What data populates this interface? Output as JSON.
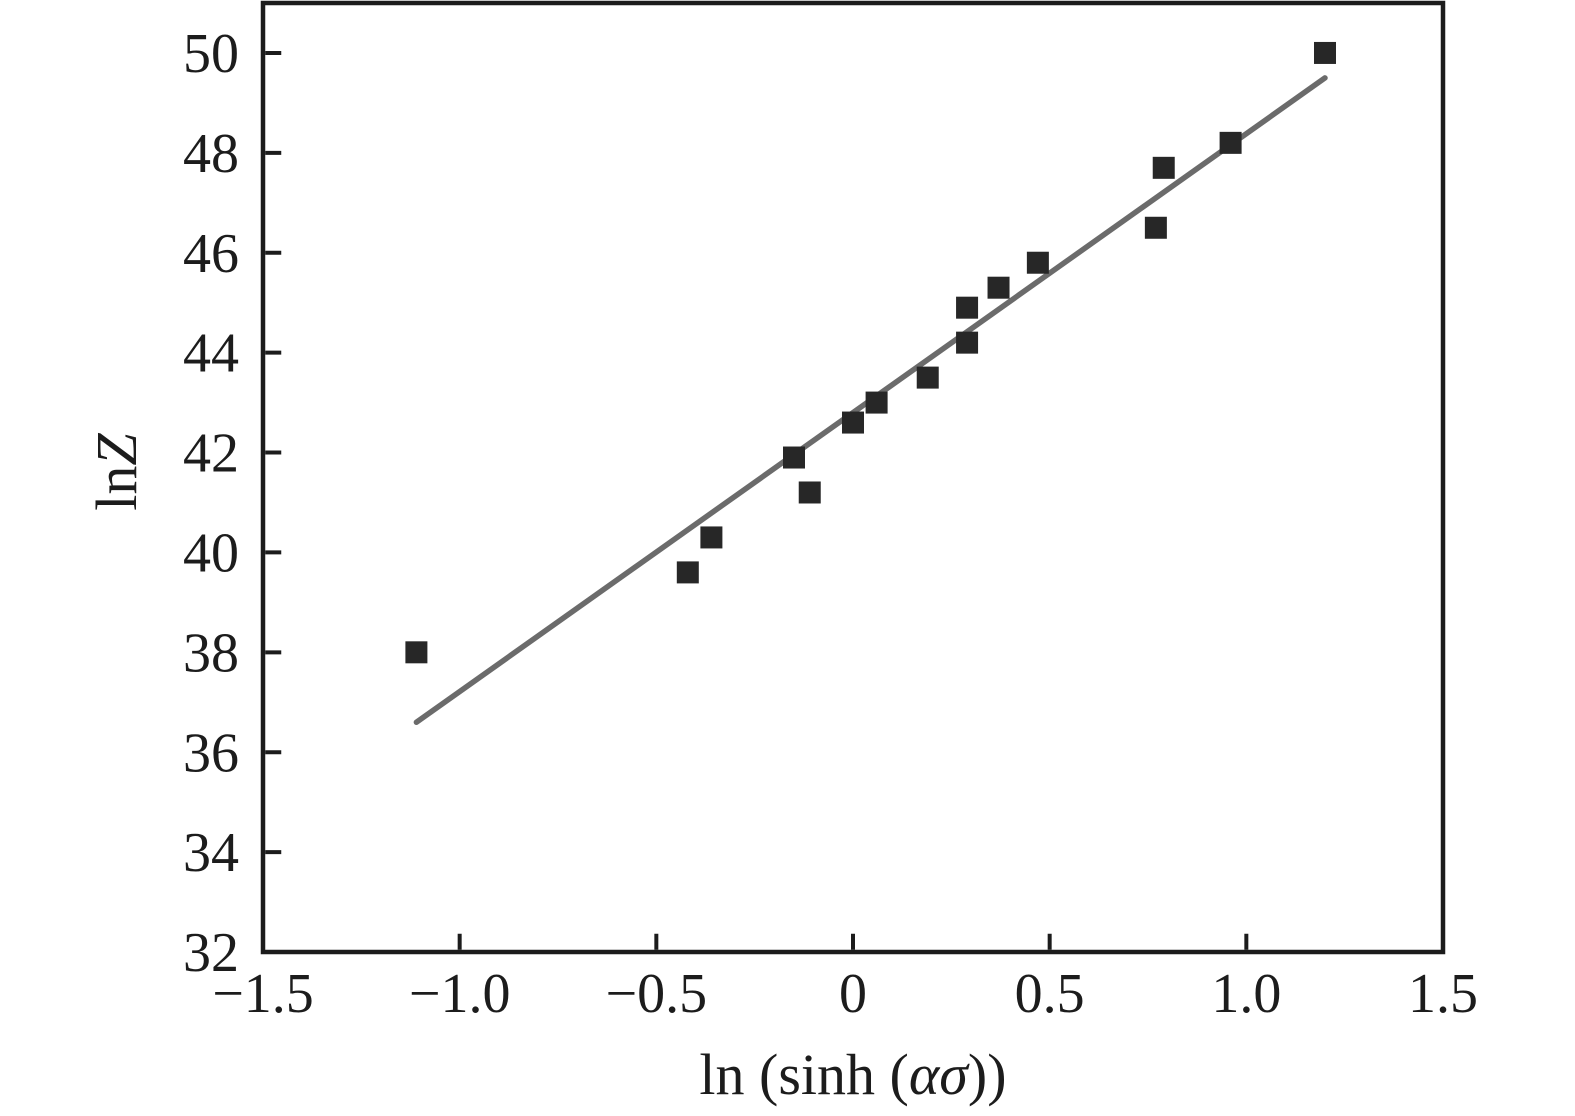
{
  "figure": {
    "background": "#ffffff",
    "plot_background": "#ffffff"
  },
  "chart_data": {
    "type": "scatter",
    "title": "",
    "xlabel": {
      "prefix": "ln (sinh (",
      "italic": "ασ",
      "suffix": "))",
      "plain": "ln (sinh (ασ))"
    },
    "ylabel": {
      "prefix": "ln",
      "italic": "Z",
      "suffix": "",
      "plain": "lnZ"
    },
    "xlim": [
      -1.5,
      1.5
    ],
    "ylim": [
      32,
      51
    ],
    "grid": false,
    "legend_position": "none",
    "axis_color": "#1c1c1c",
    "tick_direction": "in",
    "xticks": [
      {
        "value": -1.5,
        "label": "−1.5"
      },
      {
        "value": -1.0,
        "label": "−1.0"
      },
      {
        "value": -0.5,
        "label": "−0.5"
      },
      {
        "value": 0,
        "label": "0"
      },
      {
        "value": 0.5,
        "label": "0.5"
      },
      {
        "value": 1.0,
        "label": "1.0"
      },
      {
        "value": 1.5,
        "label": "1.5"
      }
    ],
    "yticks": [
      {
        "value": 32,
        "label": "32"
      },
      {
        "value": 34,
        "label": "34"
      },
      {
        "value": 36,
        "label": "36"
      },
      {
        "value": 38,
        "label": "38"
      },
      {
        "value": 40,
        "label": "40"
      },
      {
        "value": 42,
        "label": "42"
      },
      {
        "value": 44,
        "label": "44"
      },
      {
        "value": 46,
        "label": "46"
      },
      {
        "value": 48,
        "label": "48"
      },
      {
        "value": 50,
        "label": "50"
      }
    ],
    "series": [
      {
        "name": "fit-line",
        "type": "line",
        "color": "#6b6b6b",
        "stroke_width": 5.5,
        "points": [
          [
            -1.11,
            36.6
          ],
          [
            1.2,
            49.5
          ]
        ]
      },
      {
        "name": "data-points",
        "type": "scatter",
        "marker": "square",
        "marker_size": 22,
        "color": "#272727",
        "points": [
          [
            -1.11,
            38.0
          ],
          [
            -0.42,
            39.6
          ],
          [
            -0.36,
            40.3
          ],
          [
            -0.15,
            41.9
          ],
          [
            -0.11,
            41.2
          ],
          [
            0.0,
            42.6
          ],
          [
            0.06,
            43.0
          ],
          [
            0.19,
            43.5
          ],
          [
            0.29,
            44.2
          ],
          [
            0.29,
            44.9
          ],
          [
            0.37,
            45.3
          ],
          [
            0.47,
            45.8
          ],
          [
            0.77,
            46.5
          ],
          [
            0.79,
            47.7
          ],
          [
            0.96,
            48.2
          ],
          [
            1.2,
            50.0
          ]
        ]
      }
    ]
  }
}
